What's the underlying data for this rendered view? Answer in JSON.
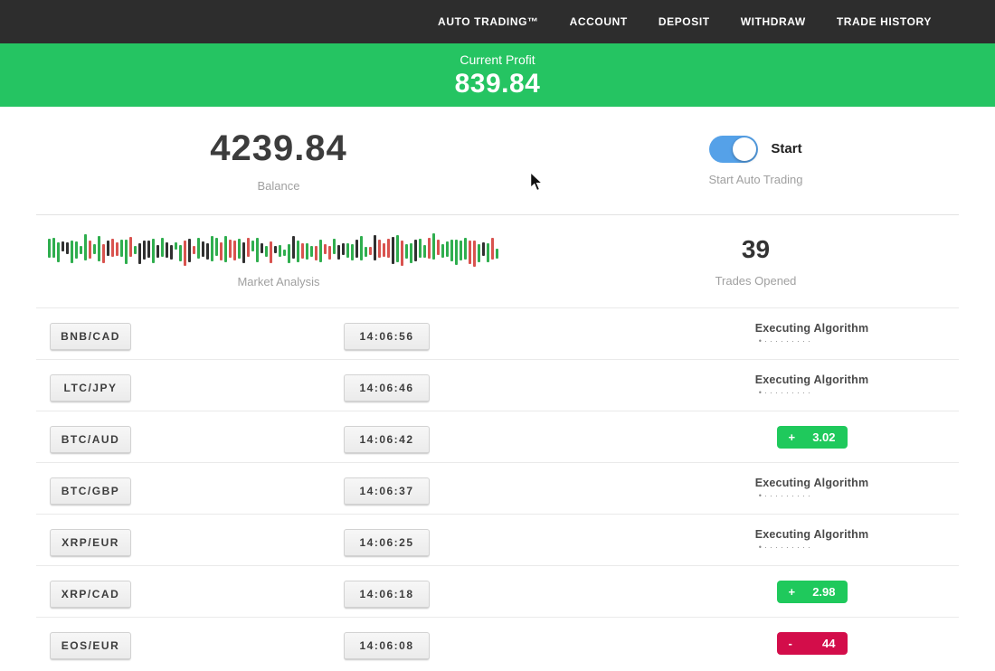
{
  "navbar": {
    "items": [
      "AUTO TRADING™",
      "ACCOUNT",
      "DEPOSIT",
      "WITHDRAW",
      "TRADE HISTORY"
    ]
  },
  "profit_banner": {
    "label": "Current Profit",
    "value": "839.84"
  },
  "account": {
    "balance_value": "4239.84",
    "balance_label": "Balance",
    "toggle_label": "Start",
    "toggle_sublabel": "Start Auto Trading",
    "toggle_on": true
  },
  "market": {
    "label": "Market Analysis",
    "trades_opened_value": "39",
    "trades_opened_label": "Trades Opened",
    "bars": 100,
    "seed": 9
  },
  "labels": {
    "executing": "Executing Algorithm",
    "executing_dots": "•·········"
  },
  "trades": [
    {
      "pair": "BNB/CAD",
      "time": "14:06:56",
      "status": "executing"
    },
    {
      "pair": "LTC/JPY",
      "time": "14:06:46",
      "status": "executing"
    },
    {
      "pair": "BTC/AUD",
      "time": "14:06:42",
      "status": "profit",
      "sign": "+",
      "value": "3.02"
    },
    {
      "pair": "BTC/GBP",
      "time": "14:06:37",
      "status": "executing"
    },
    {
      "pair": "XRP/EUR",
      "time": "14:06:25",
      "status": "executing"
    },
    {
      "pair": "XRP/CAD",
      "time": "14:06:18",
      "status": "profit",
      "sign": "+",
      "value": "2.98"
    },
    {
      "pair": "EOS/EUR",
      "time": "14:06:08",
      "status": "loss",
      "sign": "-",
      "value": "44"
    }
  ],
  "colors": {
    "nav_bg": "#2d2d2d",
    "banner_green": "#25c462",
    "badge_green": "#1fc95c",
    "badge_red": "#d30d4a",
    "toggle_blue": "#55a1e8",
    "candle_up": "#2fae4e",
    "candle_down": "#d9534f",
    "candle_dark": "#303030"
  }
}
